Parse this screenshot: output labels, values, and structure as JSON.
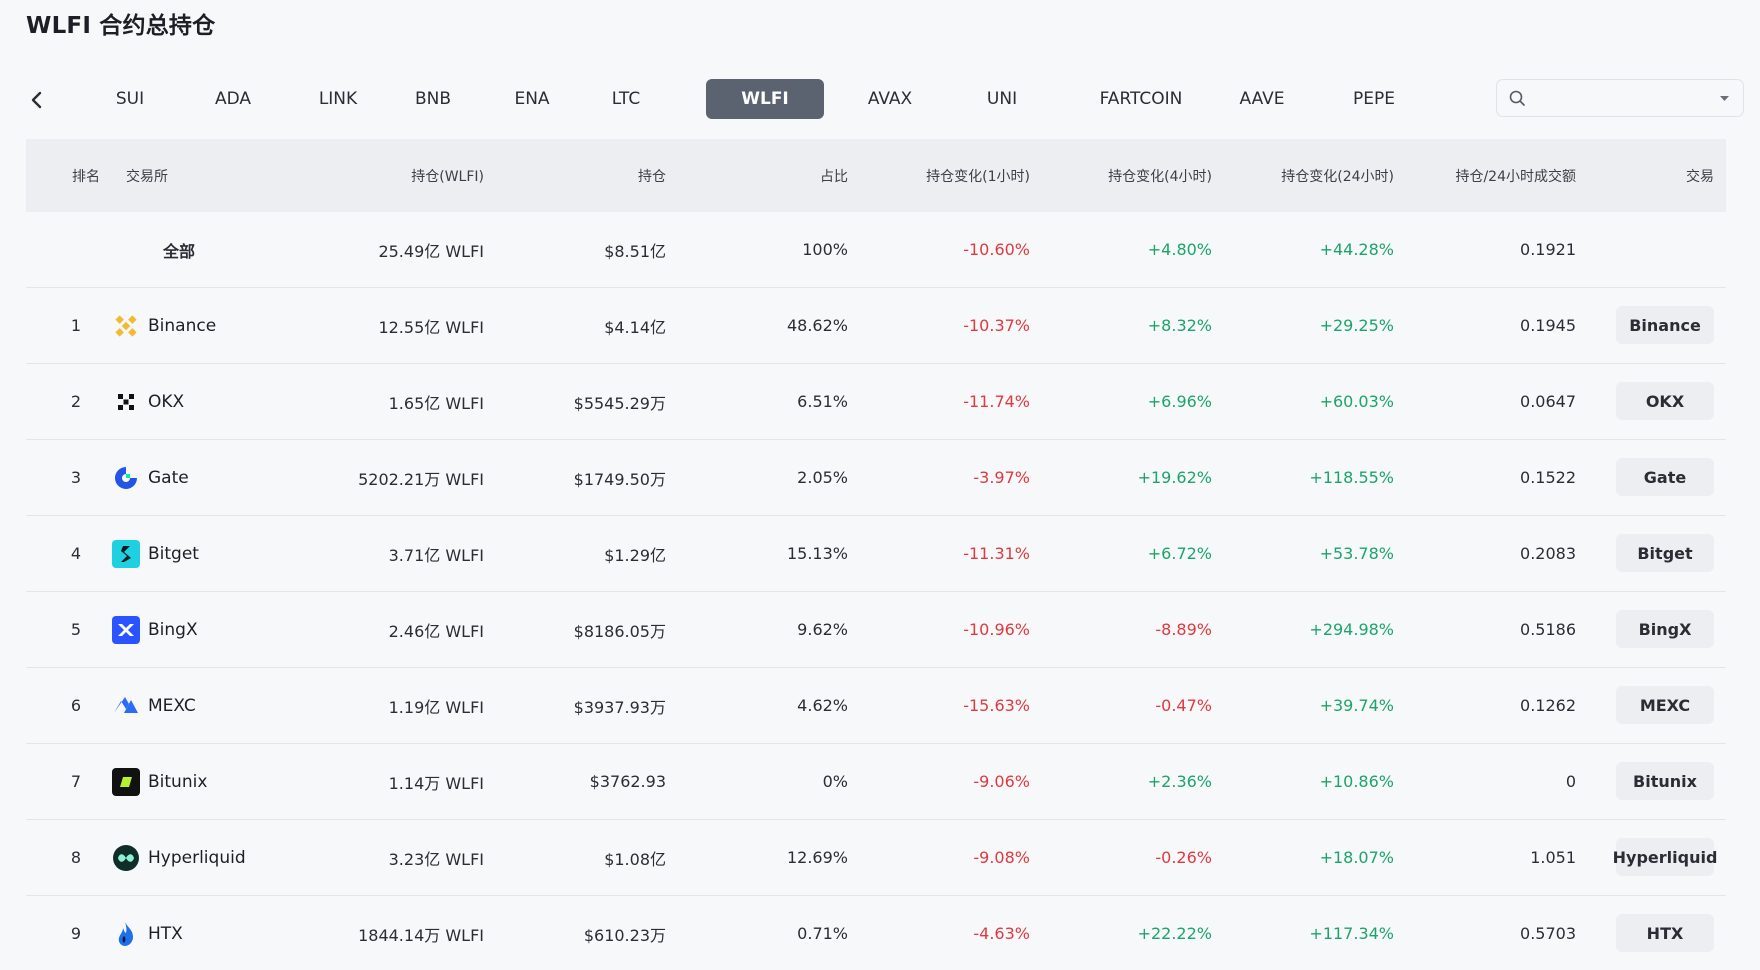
{
  "page_title": "WLFI 合约总持仓",
  "tabs": [
    "SUI",
    "ADA",
    "LINK",
    "BNB",
    "ENA",
    "LTC",
    "WLFI",
    "AVAX",
    "UNI",
    "FARTCOIN",
    "AAVE",
    "PEPE"
  ],
  "active_tab": "WLFI",
  "search": {
    "value": "",
    "placeholder": ""
  },
  "columns": {
    "rank": "排名",
    "exchange": "交易所",
    "oi_coin": "持仓(WLFI)",
    "oi": "持仓",
    "share": "占比",
    "chg_1h": "持仓变化(1小时)",
    "chg_4h": "持仓变化(4小时)",
    "chg_24h": "持仓变化(24小时)",
    "oi_vol": "持仓/24小时成交额",
    "trade": "交易"
  },
  "total_row": {
    "label": "全部",
    "oi_coin": "25.49亿 WLFI",
    "oi": "$8.51亿",
    "share": "100%",
    "chg_1h": "-10.60%",
    "chg_4h": "+4.80%",
    "chg_24h": "+44.28%",
    "oi_vol": "0.1921"
  },
  "rows": [
    {
      "rank": "1",
      "exchange": "Binance",
      "logo": "binance-logo",
      "oi_coin": "12.55亿 WLFI",
      "oi": "$4.14亿",
      "share": "48.62%",
      "chg_1h": "-10.37%",
      "chg_4h": "+8.32%",
      "chg_24h": "+29.25%",
      "oi_vol": "0.1945",
      "trade": "Binance"
    },
    {
      "rank": "2",
      "exchange": "OKX",
      "logo": "okx-logo",
      "oi_coin": "1.65亿 WLFI",
      "oi": "$5545.29万",
      "share": "6.51%",
      "chg_1h": "-11.74%",
      "chg_4h": "+6.96%",
      "chg_24h": "+60.03%",
      "oi_vol": "0.0647",
      "trade": "OKX"
    },
    {
      "rank": "3",
      "exchange": "Gate",
      "logo": "gate-logo",
      "oi_coin": "5202.21万 WLFI",
      "oi": "$1749.50万",
      "share": "2.05%",
      "chg_1h": "-3.97%",
      "chg_4h": "+19.62%",
      "chg_24h": "+118.55%",
      "oi_vol": "0.1522",
      "trade": "Gate"
    },
    {
      "rank": "4",
      "exchange": "Bitget",
      "logo": "bitget-logo",
      "oi_coin": "3.71亿 WLFI",
      "oi": "$1.29亿",
      "share": "15.13%",
      "chg_1h": "-11.31%",
      "chg_4h": "+6.72%",
      "chg_24h": "+53.78%",
      "oi_vol": "0.2083",
      "trade": "Bitget"
    },
    {
      "rank": "5",
      "exchange": "BingX",
      "logo": "bingx-logo",
      "oi_coin": "2.46亿 WLFI",
      "oi": "$8186.05万",
      "share": "9.62%",
      "chg_1h": "-10.96%",
      "chg_4h": "-8.89%",
      "chg_24h": "+294.98%",
      "oi_vol": "0.5186",
      "trade": "BingX"
    },
    {
      "rank": "6",
      "exchange": "MEXC",
      "logo": "mexc-logo",
      "oi_coin": "1.19亿 WLFI",
      "oi": "$3937.93万",
      "share": "4.62%",
      "chg_1h": "-15.63%",
      "chg_4h": "-0.47%",
      "chg_24h": "+39.74%",
      "oi_vol": "0.1262",
      "trade": "MEXC"
    },
    {
      "rank": "7",
      "exchange": "Bitunix",
      "logo": "bitunix-logo",
      "oi_coin": "1.14万 WLFI",
      "oi": "$3762.93",
      "share": "0%",
      "chg_1h": "-9.06%",
      "chg_4h": "+2.36%",
      "chg_24h": "+10.86%",
      "oi_vol": "0",
      "trade": "Bitunix"
    },
    {
      "rank": "8",
      "exchange": "Hyperliquid",
      "logo": "hyperliquid-logo",
      "oi_coin": "3.23亿 WLFI",
      "oi": "$1.08亿",
      "share": "12.69%",
      "chg_1h": "-9.08%",
      "chg_4h": "-0.26%",
      "chg_24h": "+18.07%",
      "oi_vol": "1.051",
      "trade": "Hyperliquid"
    },
    {
      "rank": "9",
      "exchange": "HTX",
      "logo": "htx-logo",
      "oi_coin": "1844.14万 WLFI",
      "oi": "$610.23万",
      "share": "0.71%",
      "chg_1h": "-4.63%",
      "chg_4h": "+22.22%",
      "chg_24h": "+117.34%",
      "oi_vol": "0.5703",
      "trade": "HTX"
    }
  ],
  "colors": {
    "positive": "#1ba56a",
    "negative": "#e0393e",
    "active_tab_bg": "#5b6270",
    "header_bg": "#eceef2"
  }
}
